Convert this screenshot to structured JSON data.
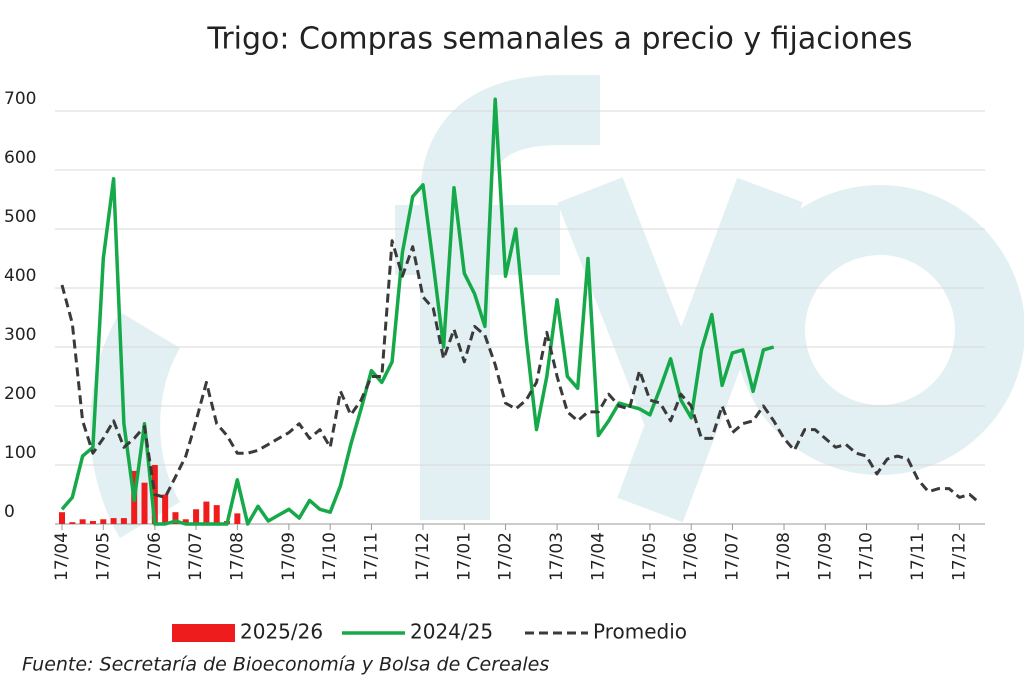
{
  "chart_data": {
    "type": "line",
    "title": "Trigo: Compras semanales a precio y fijaciones",
    "source": "Fuente: Secretaría de Bioeconomía y Bolsa de Cereales",
    "categories": [
      "17/04",
      null,
      null,
      null,
      "17/05",
      null,
      null,
      null,
      null,
      "17/06",
      null,
      null,
      null,
      "17/07",
      null,
      null,
      null,
      "17/08",
      null,
      null,
      null,
      null,
      "17/09",
      null,
      null,
      null,
      "17/10",
      null,
      null,
      null,
      "17/11",
      null,
      null,
      null,
      null,
      "17/12",
      null,
      null,
      null,
      "17/01",
      null,
      null,
      null,
      "17/02",
      null,
      null,
      null,
      null,
      "17/03",
      null,
      null,
      null,
      "17/04",
      null,
      null,
      null,
      null,
      "17/05",
      null,
      null,
      null,
      "17/06",
      null,
      null,
      null,
      "17/07",
      null,
      null,
      null,
      null,
      "17/08",
      null,
      null,
      null,
      "17/09",
      null,
      null,
      null,
      "17/10",
      null,
      null,
      null,
      null,
      "17/11",
      null,
      null,
      null,
      "17/12",
      null,
      null
    ],
    "ylim": [
      0,
      700
    ],
    "yticks": [
      0,
      100,
      200,
      300,
      400,
      500,
      600,
      700
    ],
    "grid": true,
    "series": [
      {
        "name": "2025/26",
        "type": "bar",
        "color": "#ee1c1c",
        "values": [
          20,
          3,
          8,
          5,
          8,
          10,
          10,
          90,
          70,
          100,
          50,
          20,
          8,
          25,
          38,
          32,
          5,
          18,
          null,
          null,
          null,
          null,
          null,
          null,
          null,
          null,
          null,
          null,
          null,
          null,
          null,
          null,
          null,
          null,
          null,
          null,
          null,
          null,
          null,
          null,
          null,
          null,
          null,
          null,
          null,
          null,
          null,
          null,
          null,
          null,
          null,
          null,
          null,
          null,
          null,
          null,
          null,
          null,
          null,
          null,
          null,
          null,
          null,
          null,
          null,
          null,
          null,
          null,
          null,
          null,
          null,
          null,
          null,
          null,
          null,
          null,
          null,
          null,
          null,
          null,
          null,
          null,
          null,
          null,
          null,
          null,
          null,
          null,
          null,
          null
        ]
      },
      {
        "name": "2024/25",
        "type": "line",
        "color": "#16a94a",
        "dashed": false,
        "values": [
          25,
          45,
          115,
          130,
          450,
          585,
          170,
          40,
          170,
          0,
          0,
          5,
          0,
          0,
          0,
          0,
          0,
          75,
          0,
          30,
          5,
          15,
          25,
          10,
          40,
          25,
          20,
          65,
          135,
          195,
          260,
          240,
          275,
          460,
          555,
          575,
          440,
          300,
          570,
          425,
          390,
          335,
          720,
          420,
          500,
          315,
          160,
          250,
          380,
          250,
          230,
          450,
          150,
          175,
          205,
          200,
          195,
          185,
          230,
          280,
          210,
          180,
          295,
          355,
          235,
          290,
          295,
          225,
          295,
          300,
          null,
          null,
          null,
          null,
          null,
          null,
          null,
          null,
          null,
          null,
          null,
          null,
          null,
          null,
          null,
          null,
          null,
          null,
          null,
          null
        ]
      },
      {
        "name": "Promedio",
        "type": "line",
        "color": "#3a3a3a",
        "dashed": true,
        "values": [
          405,
          340,
          175,
          120,
          145,
          175,
          130,
          145,
          165,
          50,
          45,
          80,
          115,
          175,
          240,
          170,
          150,
          120,
          120,
          125,
          135,
          145,
          155,
          170,
          145,
          160,
          130,
          225,
          185,
          210,
          250,
          250,
          480,
          420,
          470,
          385,
          365,
          280,
          330,
          275,
          335,
          320,
          270,
          205,
          195,
          210,
          240,
          325,
          250,
          190,
          175,
          190,
          190,
          220,
          200,
          195,
          260,
          210,
          205,
          175,
          220,
          200,
          145,
          145,
          200,
          155,
          170,
          175,
          200,
          175,
          145,
          125,
          160,
          160,
          145,
          130,
          135,
          120,
          115,
          85,
          110,
          115,
          110,
          75,
          55,
          60,
          60,
          45,
          50,
          35
        ]
      }
    ]
  }
}
